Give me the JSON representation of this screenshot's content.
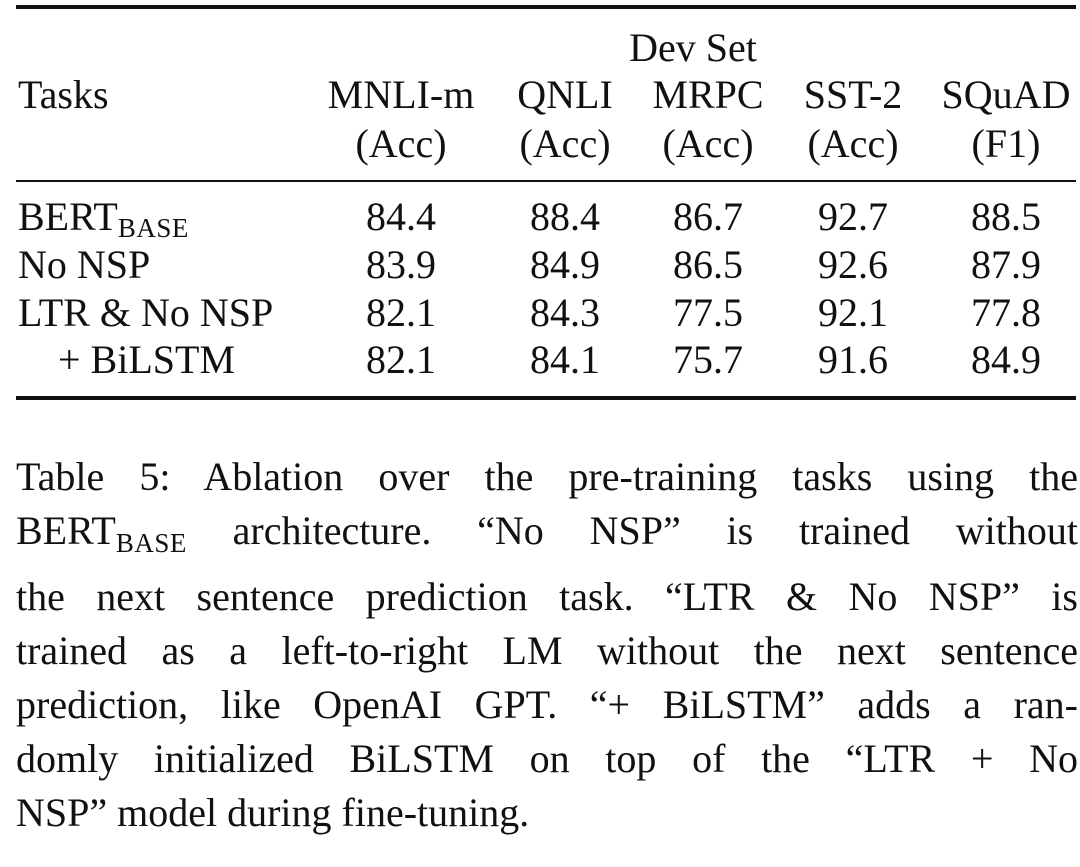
{
  "table": {
    "group_header": "Dev Set",
    "tasks_header": "Tasks",
    "columns": [
      {
        "name": "MNLI-m",
        "metric": "(Acc)"
      },
      {
        "name": "QNLI",
        "metric": "(Acc)"
      },
      {
        "name": "MRPC",
        "metric": "(Acc)"
      },
      {
        "name": "SST-2",
        "metric": "(Acc)"
      },
      {
        "name": "SQuAD",
        "metric": "(F1)"
      }
    ],
    "rows": [
      {
        "label_main": "BERT",
        "label_sub": "BASE",
        "values": [
          "84.4",
          "88.4",
          "86.7",
          "92.7",
          "88.5"
        ]
      },
      {
        "label_main": "No NSP",
        "label_sub": "",
        "values": [
          "83.9",
          "84.9",
          "86.5",
          "92.6",
          "87.9"
        ]
      },
      {
        "label_main": "LTR & No NSP",
        "label_sub": "",
        "values": [
          "82.1",
          "84.3",
          "77.5",
          "92.1",
          "77.8"
        ]
      },
      {
        "label_main": "+ BiLSTM",
        "label_sub": "",
        "values": [
          "82.1",
          "84.1",
          "75.7",
          "91.6",
          "84.9"
        ]
      }
    ]
  },
  "caption": {
    "line1": "Table 5: Ablation over the pre-training tasks using the",
    "line2_pre": "BERT",
    "line2_sub": "BASE",
    "line2_post": " architecture. “No NSP” is trained without",
    "line3": "the next sentence prediction task. “LTR & No NSP” is",
    "line4": "trained as a left-to-right LM without the next sentence",
    "line5": "prediction, like OpenAI GPT. “+ BiLSTM” adds a ran-",
    "line6": "domly initialized BiLSTM on top of the “LTR + No",
    "line7": "NSP” model during fine-tuning."
  }
}
